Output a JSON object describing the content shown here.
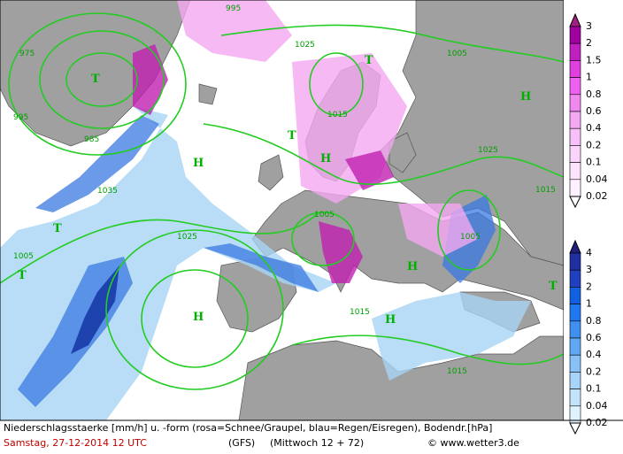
{
  "centers": [
    "T",
    "H",
    "H",
    "H",
    "H",
    "H",
    "H",
    "T",
    "T",
    "T",
    "T",
    "T"
  ],
  "isobar_labels": [
    "975",
    "995",
    "985",
    "995",
    "1025",
    "1015",
    "1005",
    "1025",
    "1035",
    "1025",
    "1005",
    "1015",
    "1015",
    "1005",
    "1015",
    "1005"
  ],
  "legends": {
    "snow": {
      "labels": [
        "3",
        "2",
        "1.5",
        "1",
        "0.8",
        "0.6",
        "0.4",
        "0.2",
        "0.1",
        "0.04",
        "0.02"
      ],
      "colors": [
        "#a02080",
        "#a000a0",
        "#c020c0",
        "#e040e0",
        "#f060f0",
        "#f088f0",
        "#f4a8f4",
        "#f8c0f8",
        "#fad4fa",
        "#fce4fc",
        "#fef0fe",
        "#ffffff"
      ]
    },
    "rain": {
      "labels": [
        "4",
        "3",
        "2",
        "1",
        "0.8",
        "0.6",
        "0.4",
        "0.2",
        "0.1",
        "0.04",
        "0.02"
      ],
      "colors": [
        "#202080",
        "#2030a0",
        "#2040c0",
        "#1060e0",
        "#2078f0",
        "#4090f0",
        "#60a8f4",
        "#88c0f8",
        "#a8d4fa",
        "#c4e4fc",
        "#e0f2fe",
        "#ffffff"
      ]
    }
  },
  "footer": {
    "caption": "Niederschlagsstaerke [mm/h] u. -form (rosa=Schnee/Graupel, blau=Regen/Eisregen), Bodendr.[hPa]",
    "date": "Samstag, 27-12-2014  12 UTC",
    "model": "(GFS)",
    "run": "(Mittwoch 12 + 72)",
    "credit": "© www.wetter3.de"
  }
}
